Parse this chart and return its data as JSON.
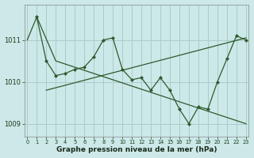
{
  "xlabel": "Graphe pression niveau de la mer (hPa)",
  "background_color": "#cce8e8",
  "grid_color": "#aacccc",
  "line_color": "#2d5a2d",
  "series": [
    {
      "x": [
        0,
        1,
        3,
        23
      ],
      "y": [
        1011.0,
        1011.55,
        1010.5,
        1009.0
      ]
    },
    {
      "x": [
        2,
        23
      ],
      "y": [
        1009.8,
        1011.05
      ]
    },
    {
      "x": [
        1,
        2,
        3,
        4,
        5,
        6,
        7,
        8,
        9,
        10,
        11,
        12,
        13,
        14,
        15,
        16,
        17,
        18,
        19,
        20,
        21,
        22,
        23
      ],
      "y": [
        1011.55,
        1010.5,
        1010.15,
        1010.2,
        1010.3,
        1010.35,
        1010.6,
        1011.0,
        1011.05,
        1010.3,
        1010.05,
        1010.1,
        1009.8,
        1010.1,
        1009.8,
        1009.35,
        1009.0,
        1009.4,
        1009.35,
        1010.0,
        1010.55,
        1011.1,
        1011.0
      ]
    }
  ],
  "ylim": [
    1008.7,
    1011.85
  ],
  "yticks": [
    1009,
    1010,
    1011
  ],
  "xlim": [
    -0.3,
    23.3
  ],
  "xticks": [
    0,
    1,
    2,
    3,
    4,
    5,
    6,
    7,
    8,
    9,
    10,
    11,
    12,
    13,
    14,
    15,
    16,
    17,
    18,
    19,
    20,
    21,
    22,
    23
  ],
  "figsize": [
    3.2,
    2.0
  ],
  "dpi": 100
}
